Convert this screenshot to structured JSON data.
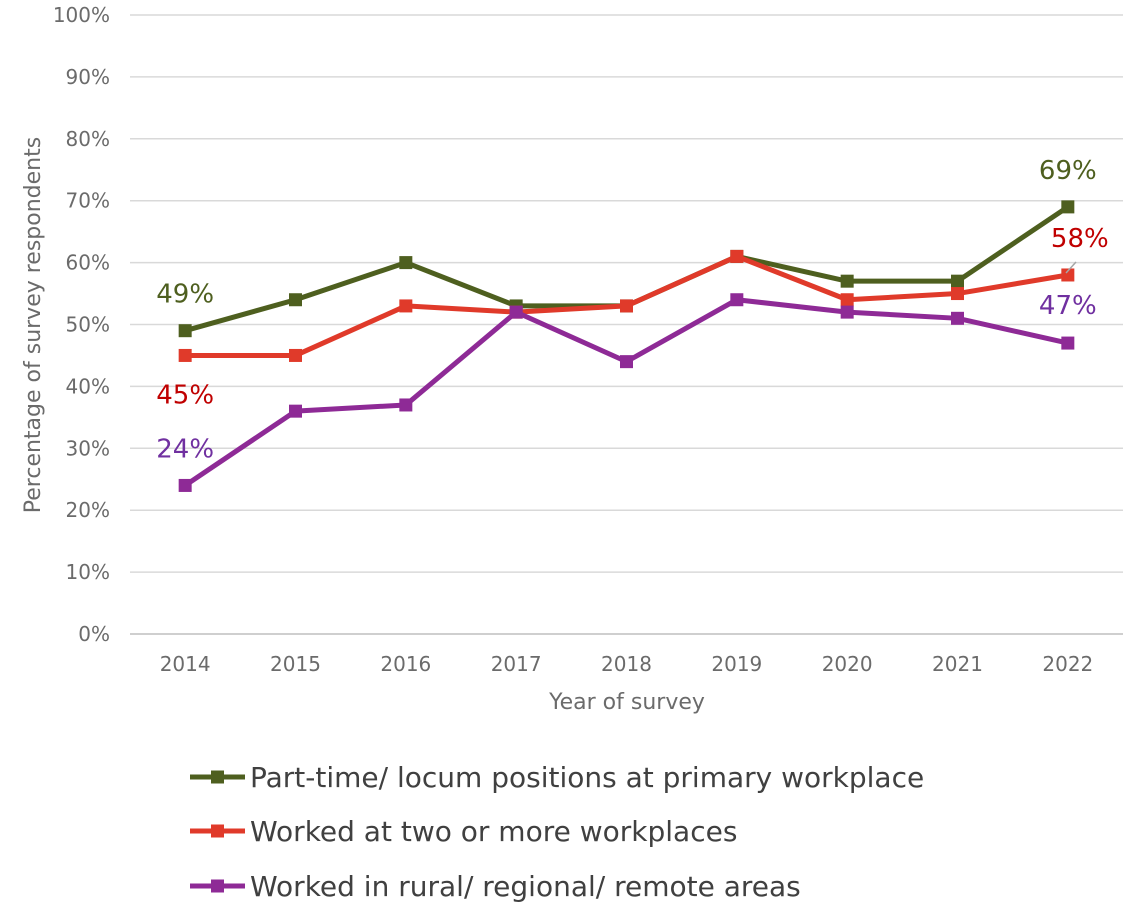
{
  "chart_data": {
    "type": "line",
    "title": "",
    "xlabel": "Year of survey",
    "ylabel": "Percentage of survey respondents",
    "categories": [
      "2014",
      "2015",
      "2016",
      "2017",
      "2018",
      "2019",
      "2020",
      "2021",
      "2022"
    ],
    "ylim": [
      0,
      100
    ],
    "yticks": [
      "0%",
      "10%",
      "20%",
      "30%",
      "40%",
      "50%",
      "60%",
      "70%",
      "80%",
      "90%",
      "100%"
    ],
    "grid": true,
    "legend_position": "bottom",
    "series": [
      {
        "name": "Part-time/ locum positions at primary workplace",
        "color": "#4e5f1f",
        "values": [
          49,
          54,
          60,
          53,
          53,
          61,
          57,
          57,
          69
        ]
      },
      {
        "name": "Worked at two or more workplaces",
        "color": "#e03a2a",
        "values": [
          45,
          45,
          53,
          52,
          53,
          61,
          54,
          55,
          58
        ]
      },
      {
        "name": "Worked in rural/ regional/ remote areas",
        "color": "#8e2a96",
        "values": [
          24,
          36,
          37,
          52,
          44,
          54,
          52,
          51,
          47
        ]
      }
    ],
    "annotations": [
      {
        "series": 0,
        "index": 0,
        "text": "49%",
        "color": "#4e5f1f"
      },
      {
        "series": 0,
        "index": 8,
        "text": "69%",
        "color": "#4e5f1f"
      },
      {
        "series": 1,
        "index": 0,
        "text": "45%",
        "color": "#c00000"
      },
      {
        "series": 1,
        "index": 8,
        "text": "58%",
        "color": "#c00000"
      },
      {
        "series": 2,
        "index": 0,
        "text": "24%",
        "color": "#7030a0"
      },
      {
        "series": 2,
        "index": 8,
        "text": "47%",
        "color": "#7030a0"
      }
    ]
  }
}
